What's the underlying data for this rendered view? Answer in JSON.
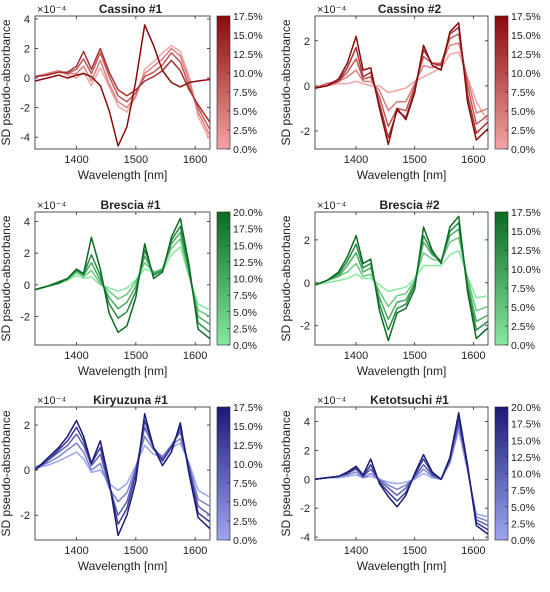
{
  "figure": {
    "shared_ylabel": "SD pseudo-absorbance",
    "shared_xlabel": "Wavelength [nm]"
  },
  "chart_data": [
    {
      "type": "line",
      "title": "Cassino #1",
      "xlabel": "Wavelength [nm]",
      "ylabel": "SD pseudo-absorbance",
      "y_exponent": "×10⁻⁴",
      "xlim": [
        1330,
        1625
      ],
      "ylim": [
        -4.8,
        4.2
      ],
      "xticks": [
        1400,
        1500,
        1600
      ],
      "yticks": [
        -4,
        -2,
        0,
        2,
        4
      ],
      "colorbar": {
        "ticks": [
          "17.5%",
          "15.0%",
          "12.5%",
          "10.0%",
          "7.5%",
          "5.0%",
          "2.5%",
          "0.0%"
        ],
        "dark": "#8b0a0a",
        "light": "#f4a4a4"
      },
      "x": [
        1330,
        1350,
        1370,
        1385,
        1400,
        1412,
        1425,
        1440,
        1455,
        1470,
        1485,
        1500,
        1515,
        1530,
        1545,
        1560,
        1575,
        1590,
        1605,
        1625
      ],
      "series": [
        {
          "values": [
            -0.2,
            0.0,
            0.2,
            0.0,
            0.2,
            0.3,
            0.1,
            -0.5,
            -2.2,
            -4.6,
            -3.3,
            -0.2,
            3.6,
            2.2,
            0.5,
            -0.3,
            -0.6,
            -0.3,
            -0.2,
            -0.1
          ]
        },
        {
          "values": [
            0.1,
            0.2,
            0.4,
            0.4,
            0.8,
            1.8,
            0.6,
            2.0,
            0.4,
            -0.8,
            -1.2,
            -0.8,
            -0.2,
            0.1,
            0.5,
            1.2,
            0.5,
            -0.8,
            -1.8,
            -3.0
          ]
        },
        {
          "values": [
            0.1,
            0.2,
            0.4,
            0.3,
            0.6,
            1.3,
            0.3,
            1.7,
            0.1,
            -1.2,
            -1.6,
            -1.0,
            0.1,
            0.4,
            0.9,
            1.7,
            1.1,
            -0.6,
            -2.0,
            -3.5
          ]
        },
        {
          "values": [
            0.1,
            0.3,
            0.5,
            0.3,
            0.3,
            0.8,
            -0.2,
            1.2,
            -0.4,
            -1.6,
            -2.0,
            -1.2,
            0.3,
            0.8,
            1.3,
            2.0,
            1.5,
            -0.2,
            -2.3,
            -3.9
          ]
        },
        {
          "values": [
            0.1,
            0.3,
            0.5,
            0.2,
            0.0,
            0.4,
            -0.5,
            0.7,
            -0.6,
            -1.9,
            -2.3,
            -1.3,
            0.6,
            1.1,
            1.7,
            2.2,
            1.8,
            0.1,
            -2.6,
            -4.2
          ]
        }
      ]
    },
    {
      "type": "line",
      "title": "Cassino #2",
      "xlabel": "Wavelength [nm]",
      "ylabel": "SD pseudo-absorbance",
      "y_exponent": "×10⁻⁴",
      "xlim": [
        1330,
        1625
      ],
      "ylim": [
        -2.8,
        3.1
      ],
      "xticks": [
        1400,
        1500,
        1600
      ],
      "yticks": [
        -2,
        0,
        2
      ],
      "colorbar": {
        "ticks": [
          "17.5%",
          "15.0%",
          "12.5%",
          "10.0%",
          "7.5%",
          "5.0%",
          "2.5%",
          "0.0%"
        ],
        "dark": "#8b0a0a",
        "light": "#f4a4a4"
      },
      "x": [
        1330,
        1350,
        1370,
        1385,
        1400,
        1412,
        1425,
        1440,
        1455,
        1470,
        1485,
        1500,
        1515,
        1530,
        1545,
        1560,
        1575,
        1590,
        1605,
        1625
      ],
      "series": [
        {
          "values": [
            -0.1,
            0.0,
            0.3,
            1.0,
            2.2,
            0.7,
            0.8,
            -1.0,
            -2.6,
            -1.0,
            -1.5,
            -0.3,
            1.8,
            0.9,
            0.7,
            2.4,
            2.8,
            -0.7,
            -2.4,
            -1.9
          ]
        },
        {
          "values": [
            -0.1,
            0.0,
            0.2,
            0.8,
            1.7,
            0.4,
            0.6,
            -0.8,
            -2.3,
            -1.1,
            -1.4,
            -0.2,
            1.6,
            1.0,
            0.9,
            2.3,
            2.6,
            -0.4,
            -2.1,
            -1.6
          ]
        },
        {
          "values": [
            -0.1,
            0.1,
            0.2,
            0.6,
            1.2,
            0.3,
            0.4,
            -0.5,
            -1.8,
            -1.0,
            -1.1,
            0.0,
            1.3,
            1.0,
            1.0,
            2.1,
            2.3,
            0.0,
            -1.7,
            -1.3
          ]
        },
        {
          "values": [
            -0.1,
            0.1,
            0.2,
            0.4,
            0.7,
            0.2,
            0.2,
            -0.2,
            -1.1,
            -0.7,
            -0.7,
            0.1,
            0.9,
            0.8,
            1.0,
            1.8,
            1.9,
            0.3,
            -1.2,
            -1.0
          ]
        },
        {
          "values": [
            -0.1,
            0.0,
            0.1,
            0.1,
            0.2,
            0.1,
            0.0,
            0.0,
            -0.3,
            -0.2,
            -0.1,
            0.2,
            0.4,
            0.6,
            0.8,
            1.4,
            1.5,
            0.4,
            -0.7,
            -1.6
          ]
        }
      ]
    },
    {
      "type": "line",
      "title": "Brescia #1",
      "xlabel": "Wavelength [nm]",
      "ylabel": "SD pseudo-absorbance",
      "y_exponent": "×10⁻⁴",
      "xlim": [
        1330,
        1625
      ],
      "ylim": [
        -3.8,
        4.6
      ],
      "xticks": [
        1400,
        1500,
        1600
      ],
      "yticks": [
        -2,
        0,
        2,
        4
      ],
      "colorbar": {
        "ticks": [
          "20.0%",
          "17.5%",
          "15.0%",
          "12.5%",
          "10.0%",
          "7.5%",
          "5.0%",
          "2.5%",
          "0.0%"
        ],
        "dark": "#0b6b22",
        "light": "#88e8a0"
      },
      "x": [
        1330,
        1350,
        1370,
        1385,
        1400,
        1412,
        1425,
        1440,
        1455,
        1470,
        1485,
        1500,
        1515,
        1530,
        1545,
        1560,
        1575,
        1590,
        1605,
        1625
      ],
      "series": [
        {
          "values": [
            -0.3,
            -0.1,
            0.1,
            0.4,
            1.0,
            0.7,
            3.0,
            1.0,
            -1.8,
            -3.0,
            -2.6,
            -0.8,
            2.6,
            0.4,
            0.8,
            3.0,
            4.2,
            1.2,
            -2.8,
            -3.4
          ]
        },
        {
          "values": [
            -0.3,
            -0.1,
            0.2,
            0.4,
            0.9,
            0.7,
            1.9,
            0.6,
            -1.2,
            -2.1,
            -1.7,
            -0.4,
            2.2,
            0.6,
            0.9,
            2.8,
            3.7,
            0.9,
            -2.4,
            -3.0
          ]
        },
        {
          "values": [
            -0.3,
            -0.1,
            0.2,
            0.4,
            0.9,
            0.6,
            1.4,
            0.3,
            -0.8,
            -1.5,
            -1.1,
            -0.1,
            1.8,
            0.7,
            1.0,
            2.6,
            3.3,
            0.7,
            -2.0,
            -2.5
          ]
        },
        {
          "values": [
            -0.3,
            -0.1,
            0.1,
            0.3,
            0.8,
            0.5,
            0.9,
            0.1,
            -0.4,
            -0.9,
            -0.6,
            0.2,
            1.4,
            0.8,
            1.0,
            2.3,
            2.9,
            0.6,
            -1.6,
            -2.0
          ]
        },
        {
          "values": [
            -0.3,
            -0.1,
            0.1,
            0.3,
            0.6,
            0.4,
            0.5,
            0.0,
            -0.2,
            -0.4,
            -0.2,
            0.3,
            1.0,
            0.8,
            0.9,
            1.9,
            2.4,
            0.5,
            -1.2,
            -1.6
          ]
        }
      ]
    },
    {
      "type": "line",
      "title": "Brescia #2",
      "xlabel": "Wavelength [nm]",
      "ylabel": "SD pseudo-absorbance",
      "y_exponent": "×10⁻⁴",
      "xlim": [
        1330,
        1625
      ],
      "ylim": [
        -2.9,
        3.3
      ],
      "xticks": [
        1400,
        1500,
        1600
      ],
      "yticks": [
        -2,
        0,
        2
      ],
      "colorbar": {
        "ticks": [
          "17.5%",
          "15.0%",
          "12.5%",
          "10.0%",
          "7.5%",
          "5.0%",
          "2.5%",
          "0.0%"
        ],
        "dark": "#0b6b22",
        "light": "#88e8a0"
      },
      "x": [
        1330,
        1350,
        1370,
        1385,
        1400,
        1412,
        1425,
        1440,
        1455,
        1470,
        1485,
        1500,
        1515,
        1530,
        1545,
        1560,
        1575,
        1590,
        1605,
        1625
      ],
      "series": [
        {
          "values": [
            -0.1,
            0.1,
            0.5,
            1.2,
            2.2,
            0.9,
            1.1,
            -1.3,
            -2.7,
            -1.4,
            -1.2,
            -0.3,
            2.6,
            1.5,
            0.9,
            2.6,
            3.1,
            -0.4,
            -2.6,
            -2.1
          ]
        },
        {
          "values": [
            -0.1,
            0.1,
            0.4,
            1.0,
            1.8,
            0.7,
            0.9,
            -1.0,
            -2.2,
            -1.2,
            -1.0,
            -0.1,
            2.2,
            1.4,
            1.0,
            2.4,
            2.8,
            -0.2,
            -2.2,
            -1.8
          ]
        },
        {
          "values": [
            -0.1,
            0.1,
            0.3,
            0.8,
            1.4,
            0.5,
            0.7,
            -0.7,
            -1.7,
            -0.9,
            -0.8,
            0.0,
            1.9,
            1.3,
            1.0,
            2.2,
            2.5,
            0.0,
            -1.8,
            -1.5
          ]
        },
        {
          "values": [
            -0.1,
            0.1,
            0.3,
            0.5,
            0.9,
            0.3,
            0.4,
            -0.4,
            -1.1,
            -0.6,
            -0.5,
            0.1,
            1.4,
            1.1,
            1.0,
            1.9,
            2.1,
            0.2,
            -1.3,
            -1.1
          ]
        },
        {
          "values": [
            -0.1,
            0.0,
            0.1,
            0.2,
            0.4,
            0.2,
            0.2,
            -0.1,
            -0.4,
            -0.3,
            -0.2,
            0.2,
            0.8,
            0.8,
            0.8,
            1.3,
            1.5,
            0.3,
            -0.7,
            -0.6
          ]
        }
      ]
    },
    {
      "type": "line",
      "title": "Kiryuzuna #1",
      "xlabel": "Wavelength [nm]",
      "ylabel": "SD pseudo-absorbance",
      "y_exponent": "×10⁻⁴",
      "xlim": [
        1330,
        1625
      ],
      "ylim": [
        -3.1,
        2.8
      ],
      "xticks": [
        1400,
        1500,
        1600
      ],
      "yticks": [
        -2,
        0,
        2
      ],
      "colorbar": {
        "ticks": [
          "17.5%",
          "15.0%",
          "12.5%",
          "10.0%",
          "7.5%",
          "5.0%",
          "2.5%",
          "0.0%"
        ],
        "dark": "#1a1a78",
        "light": "#9da6f0"
      },
      "x": [
        1330,
        1350,
        1370,
        1385,
        1400,
        1412,
        1425,
        1440,
        1455,
        1470,
        1485,
        1500,
        1515,
        1530,
        1545,
        1560,
        1575,
        1590,
        1605,
        1625
      ],
      "series": [
        {
          "values": [
            0.0,
            0.5,
            1.0,
            1.5,
            2.2,
            1.5,
            0.3,
            1.3,
            -0.5,
            -2.9,
            -2.0,
            -0.5,
            2.5,
            1.0,
            0.2,
            0.8,
            2.1,
            -0.2,
            -2.1,
            -2.6
          ]
        },
        {
          "values": [
            0.0,
            0.4,
            0.9,
            1.3,
            1.9,
            1.3,
            0.3,
            1.0,
            -0.6,
            -2.4,
            -1.7,
            -0.2,
            2.2,
            1.0,
            0.4,
            1.0,
            1.9,
            0.0,
            -1.9,
            -2.3
          ]
        },
        {
          "values": [
            0.1,
            0.4,
            0.8,
            1.1,
            1.6,
            1.1,
            0.2,
            0.7,
            -0.7,
            -2.0,
            -1.4,
            0.0,
            1.9,
            1.0,
            0.5,
            1.1,
            1.7,
            0.1,
            -1.6,
            -2.0
          ]
        },
        {
          "values": [
            0.1,
            0.3,
            0.6,
            0.9,
            1.2,
            0.8,
            0.0,
            0.3,
            -0.8,
            -1.4,
            -1.0,
            0.1,
            1.5,
            0.9,
            0.6,
            1.1,
            1.4,
            0.2,
            -1.3,
            -1.6
          ]
        },
        {
          "values": [
            0.1,
            0.2,
            0.4,
            0.6,
            0.8,
            0.5,
            -0.1,
            0.0,
            -0.6,
            -0.9,
            -0.6,
            0.2,
            1.1,
            0.7,
            0.6,
            1.0,
            1.2,
            0.3,
            -0.9,
            -1.2
          ]
        }
      ]
    },
    {
      "type": "line",
      "title": "Ketotsuchi #1",
      "xlabel": "Wavelength [nm]",
      "ylabel": "SD pseudo-absorbance",
      "y_exponent": "×10⁻⁴",
      "xlim": [
        1330,
        1625
      ],
      "ylim": [
        -4.2,
        5.0
      ],
      "xticks": [
        1400,
        1500,
        1600
      ],
      "yticks": [
        -4,
        -2,
        0,
        2,
        4
      ],
      "colorbar": {
        "ticks": [
          "20.0%",
          "17.5%",
          "15.0%",
          "12.5%",
          "10.0%",
          "7.5%",
          "5.0%",
          "2.5%",
          "0.0%"
        ],
        "dark": "#1a1a78",
        "light": "#9da6f0"
      },
      "x": [
        1330,
        1350,
        1370,
        1385,
        1400,
        1412,
        1425,
        1440,
        1455,
        1470,
        1485,
        1500,
        1515,
        1530,
        1545,
        1560,
        1575,
        1590,
        1605,
        1625
      ],
      "series": [
        {
          "values": [
            0.0,
            0.1,
            0.2,
            0.5,
            0.9,
            0.3,
            1.4,
            -0.3,
            -1.2,
            -1.9,
            -1.1,
            0.4,
            1.7,
            0.5,
            0.0,
            1.5,
            4.6,
            1.0,
            -3.2,
            -3.8
          ]
        },
        {
          "values": [
            0.0,
            0.1,
            0.2,
            0.4,
            0.8,
            0.2,
            1.0,
            -0.2,
            -0.9,
            -1.5,
            -0.9,
            0.3,
            1.4,
            0.4,
            0.0,
            1.4,
            4.3,
            0.9,
            -3.0,
            -3.5
          ]
        },
        {
          "values": [
            0.0,
            0.1,
            0.2,
            0.4,
            0.7,
            0.2,
            0.7,
            -0.1,
            -0.6,
            -1.1,
            -0.6,
            0.2,
            1.0,
            0.3,
            0.0,
            1.3,
            4.0,
            0.8,
            -2.8,
            -3.2
          ]
        },
        {
          "values": [
            0.0,
            0.1,
            0.2,
            0.3,
            0.5,
            0.1,
            0.4,
            0.0,
            -0.4,
            -0.7,
            -0.4,
            0.1,
            0.7,
            0.2,
            0.0,
            1.2,
            3.7,
            0.7,
            -2.6,
            -2.9
          ]
        },
        {
          "values": [
            0.0,
            0.1,
            0.1,
            0.2,
            0.3,
            0.1,
            0.2,
            0.0,
            -0.2,
            -0.3,
            -0.2,
            0.0,
            0.4,
            0.1,
            0.0,
            1.1,
            3.4,
            0.6,
            -2.4,
            -2.6
          ]
        }
      ]
    }
  ]
}
